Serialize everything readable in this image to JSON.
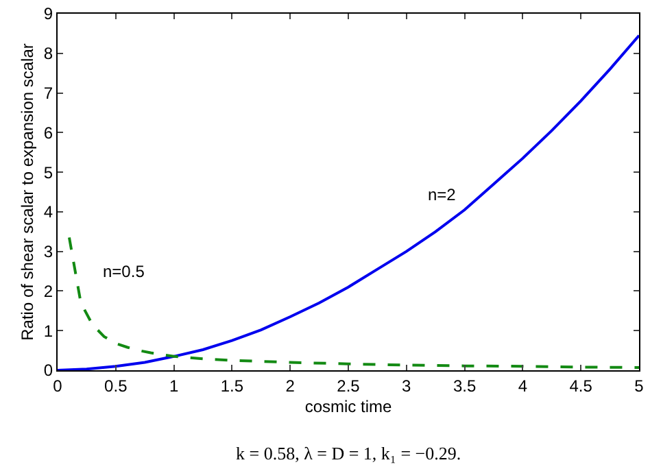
{
  "chart_data": {
    "type": "line",
    "xlabel": "cosmic time",
    "ylabel": "Ratio of shear scalar to expansion scalar",
    "series": [
      {
        "name": "n=2",
        "color": "#0000ee",
        "line_style": "solid",
        "x": [
          0,
          0.25,
          0.5,
          0.75,
          1,
          1.25,
          1.5,
          1.75,
          2,
          2.25,
          2.5,
          2.75,
          3,
          3.25,
          3.5,
          3.75,
          4,
          4.25,
          4.5,
          4.75,
          5
        ],
        "values": [
          0,
          0.03,
          0.1,
          0.2,
          0.35,
          0.52,
          0.75,
          1.02,
          1.35,
          1.7,
          2.1,
          2.55,
          3.0,
          3.5,
          4.05,
          4.7,
          5.35,
          6.05,
          6.8,
          7.6,
          8.45
        ]
      },
      {
        "name": "n=0.5",
        "color": "#138a13",
        "line_style": "dashed",
        "x": [
          0.1,
          0.2,
          0.3,
          0.4,
          0.5,
          0.6,
          0.7,
          0.8,
          1,
          1.25,
          1.5,
          2,
          2.5,
          3,
          3.5,
          4,
          4.5,
          5
        ],
        "values": [
          3.35,
          1.7,
          1.15,
          0.85,
          0.68,
          0.58,
          0.5,
          0.44,
          0.35,
          0.29,
          0.25,
          0.2,
          0.16,
          0.13,
          0.11,
          0.1,
          0.08,
          0.07
        ]
      }
    ],
    "xlim": [
      0,
      5
    ],
    "xticks": [
      0,
      0.5,
      1,
      1.5,
      2,
      2.5,
      3,
      3.5,
      4,
      4.5,
      5
    ],
    "ylim": [
      0,
      9
    ],
    "yticks": [
      0,
      1,
      2,
      3,
      4,
      5,
      6,
      7,
      8,
      9
    ],
    "grid": false,
    "legend": false,
    "marker": "none",
    "annotations": [
      "k = 0.58, λ = D = 1, k₁ = −0.29."
    ]
  }
}
